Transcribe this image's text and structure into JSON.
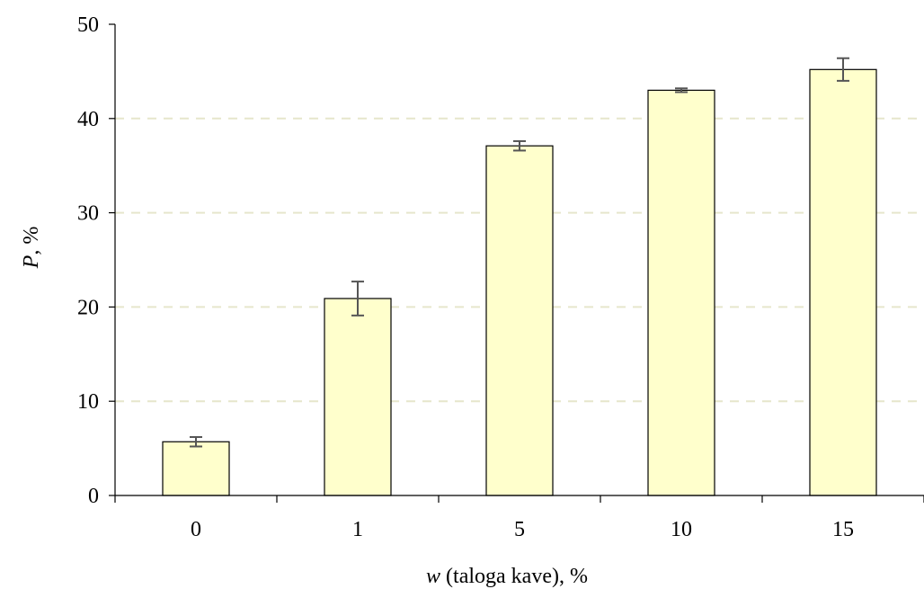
{
  "chart_data": {
    "type": "bar",
    "categories": [
      "0",
      "1",
      "5",
      "10",
      "15"
    ],
    "values": [
      5.7,
      20.9,
      37.1,
      43.0,
      45.2
    ],
    "errors": [
      0.5,
      1.8,
      0.5,
      0.2,
      1.2
    ],
    "xlabel": {
      "symbol": "w",
      "text": " (taloga kave), %"
    },
    "ylabel": {
      "symbol": "P",
      "text": ", %"
    },
    "ylim": [
      0,
      50
    ],
    "yticks": [
      "0",
      "10",
      "20",
      "30",
      "40",
      "50"
    ],
    "grid": "horizontal dashed",
    "legend": "none",
    "colors": {
      "bar_fill": "#ffffcc",
      "bar_stroke": "#000000",
      "grid": "#e6e6cc",
      "error_bar": "#555555",
      "axis": "#000000"
    }
  }
}
